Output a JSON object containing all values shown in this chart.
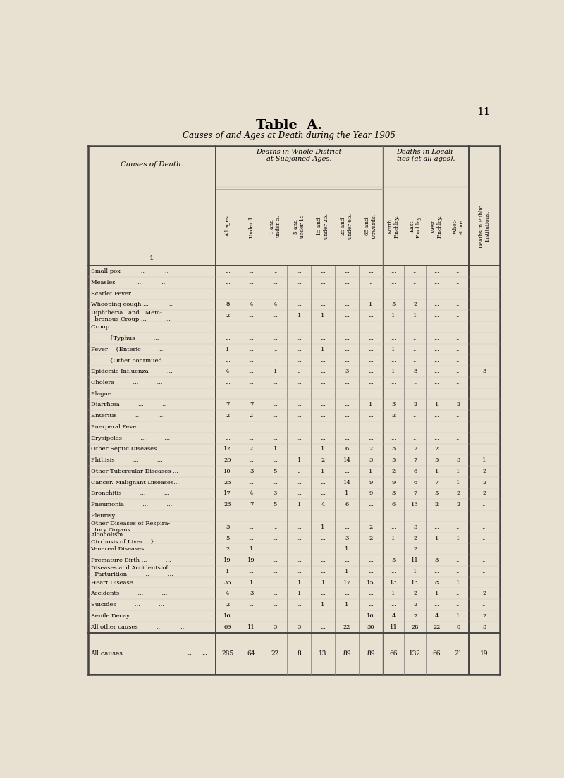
{
  "page_number": "11",
  "title": "Table  A.",
  "subtitle": "Causes of and Ages at Death during the Year 1905",
  "bg_color": "#e8e0d0",
  "col_headers_rotated": [
    "All ages",
    "Under 1.",
    "1 and\nunder 5.",
    "5 and\nunder 15",
    "15 and\nunder 25.",
    "25 and\nunder 65.",
    "65 and\nUpwards.",
    "North\nFinchley.",
    "East\nFinchley.",
    "West\nFinchley.",
    "Whet-\nstone.",
    "Deaths in Public\nInstitutions."
  ],
  "rows": [
    [
      "Small pox          ...          ...",
      "...",
      "...",
      "..",
      "...",
      "...",
      "...",
      "...",
      "...",
      "...",
      "...",
      "..."
    ],
    [
      "Measles            ...          ..",
      "...",
      "...",
      "...",
      "...",
      "...",
      "...",
      "..",
      "...",
      "...",
      "...",
      "..."
    ],
    [
      "Scarlet Fever      ..           ...",
      "...",
      "...",
      "...",
      "...",
      "...",
      "...",
      "...",
      "...",
      "..",
      "...",
      "..."
    ],
    [
      "Whooping-cough ...          ...",
      "8",
      "4",
      "4",
      "...",
      "...",
      "...",
      "1",
      "5",
      "2",
      "...",
      "..."
    ],
    [
      "Diphtheria   and   Mem-\n  branous Croup ...          ...",
      "2",
      "...",
      "...",
      "1",
      "1",
      "...",
      "...",
      "1",
      "1",
      "...",
      "..."
    ],
    [
      "Croup          ...          ...",
      "...",
      "...",
      "...",
      "...",
      "...",
      "...",
      "...",
      "...",
      "...",
      "...",
      "..."
    ],
    [
      "          {Typhus          ...",
      "...",
      "...",
      "...",
      "...",
      "...",
      "...",
      "...",
      "...",
      "...",
      "...",
      "..."
    ],
    [
      "Fever    {Enteric          ...",
      "1",
      "...",
      "..",
      "...",
      "1",
      "...",
      "...",
      "1",
      "...",
      "...",
      "..."
    ],
    [
      "          {Other continued",
      "...",
      "...",
      ".",
      "...",
      "...",
      "...",
      "...",
      "...",
      "...",
      "...",
      "..."
    ],
    [
      "Epidemic Influenza          ...",
      "4",
      "...",
      "1",
      "..",
      "...",
      "3",
      "...",
      "1",
      "3",
      "...",
      "...",
      "3"
    ],
    [
      "Cholera          ...          ...",
      "...",
      "...",
      "...",
      "...",
      "...",
      "...",
      "...",
      "...",
      "..",
      "...",
      "..."
    ],
    [
      "Plague          ...          ...",
      "...",
      "...",
      "...",
      "...",
      "...",
      "...",
      "...",
      "..",
      ".",
      "...",
      "..."
    ],
    [
      "Diarrħœa          ...          ..",
      "7",
      "7",
      "...",
      "...",
      "...",
      "...",
      "1",
      "3",
      "2",
      "1",
      "2"
    ],
    [
      "Enteritis          ...          ...",
      "2",
      "2",
      "...",
      "...",
      "...",
      "...",
      "...",
      "2",
      "...",
      "...",
      "..."
    ],
    [
      "Puerperal Fever ...          ...",
      "...",
      "...",
      "...",
      "...",
      "...",
      "...",
      "...",
      "...",
      "...",
      "...",
      "..."
    ],
    [
      "Erysipelas          ...          ...",
      "...",
      "...",
      "...",
      "...",
      "...",
      "...",
      "...",
      "...",
      "...",
      "...",
      "..."
    ],
    [
      "Other Septic Diseases          ...",
      "12",
      "2",
      "1",
      "...",
      "1",
      "6",
      "2",
      "3",
      "7",
      "2",
      "...",
      "..."
    ],
    [
      "Phthisis          ...          ...",
      "20",
      "...",
      "...",
      "1",
      "2",
      "14",
      "3",
      "5",
      "7",
      "5",
      "3",
      "1"
    ],
    [
      "Other Tubercular Diseases ...",
      "10",
      "3",
      "5",
      "..",
      "1",
      "...",
      "1",
      "2",
      "6",
      "1",
      "1",
      "2"
    ],
    [
      "Cancer. Malignant Diseases...",
      "23",
      "...",
      "...",
      "...",
      "...",
      "14",
      "9",
      "9",
      "6",
      "7",
      "1",
      "2"
    ],
    [
      "Bronchitis          ...          ...",
      "17",
      "4",
      "3",
      "...",
      "...",
      "1",
      "9",
      "3",
      "7",
      "5",
      "2",
      "2"
    ],
    [
      "Pneumonia          ...          ...",
      "23",
      "7",
      "5",
      "1",
      "4",
      "6",
      "...",
      "6",
      "13",
      "2",
      "2",
      "..."
    ],
    [
      "Pleurisy ...          ...          ...",
      "...",
      "...",
      "...",
      "...",
      "...",
      "...",
      "...",
      "...",
      "...",
      "...",
      "..."
    ],
    [
      "Other Diseases of Respira-\n  tory Organs          ...          ...",
      "3",
      "...",
      "..",
      "...",
      "1",
      "...",
      "2",
      "...",
      "3",
      "...",
      "...",
      "..."
    ],
    [
      "Alcoholism\nCirrhosis of Liver    }",
      "5",
      "...",
      "...",
      "...",
      "...",
      "3",
      "2",
      "1",
      "2",
      "1",
      "1",
      "..."
    ],
    [
      "Venereal Diseases          ...",
      "2",
      "1",
      "...",
      "...",
      "...",
      "1",
      "...",
      "...",
      "2",
      "...",
      "...",
      "..."
    ],
    [
      "Premature Birth ...          ...",
      "19",
      "19",
      "...",
      "...",
      "...",
      "...",
      "...",
      "5",
      "11",
      "3",
      "...",
      "..."
    ],
    [
      "Diseases and Accidents of\n  Parturition          ..          ...",
      "1",
      "...",
      "...",
      "...",
      "...",
      "1",
      "...",
      "...",
      "1",
      "...",
      "...",
      "..."
    ],
    [
      "Heart Disease          ...          ...",
      "35",
      "1",
      "...",
      "1",
      "l",
      "17",
      "15",
      "13",
      "13",
      "8",
      "1",
      "..."
    ],
    [
      "Accidents          ...          ...",
      "4",
      "3",
      "...",
      "1",
      "...",
      "...",
      "...",
      "1",
      "2",
      "1",
      "...",
      "2"
    ],
    [
      "Suicides          ...          ...",
      "2",
      "...",
      "...",
      "...",
      "1",
      "1",
      "...",
      "...",
      "2",
      "...",
      "...",
      "..."
    ],
    [
      "Senile Decay          ...          ...",
      "16",
      "...",
      "...",
      "...",
      "...",
      "...",
      "16",
      "4",
      "7",
      "4",
      "1",
      "2"
    ],
    [
      "All other causes          ...          ...",
      "69",
      "11",
      "3",
      "3",
      "...",
      "22",
      "30",
      "11",
      "28",
      "22",
      "8",
      "3"
    ]
  ],
  "totals": [
    "285",
    "64",
    "22",
    "8",
    "13",
    "89",
    "89",
    "66",
    "132",
    "66",
    "21",
    "19"
  ]
}
